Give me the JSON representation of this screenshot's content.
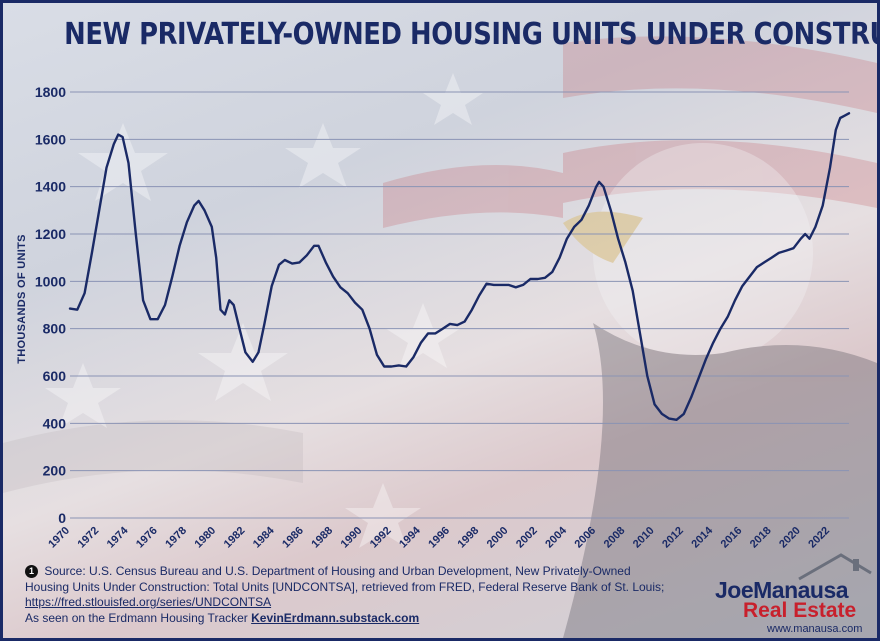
{
  "title": "NEW PRIVATELY-OWNED HOUSING UNITS UNDER CONSTRUCTION",
  "colors": {
    "line": "#1a2a66",
    "accent_red": "#c8202c",
    "grid": "#8a93b4"
  },
  "chart_data": {
    "type": "line",
    "title": "NEW PRIVATELY-OWNED HOUSING UNITS UNDER CONSTRUCTION",
    "xlabel": "",
    "ylabel": "THOUSANDS OF UNITS",
    "xlim": [
      1970,
      2023.3
    ],
    "ylim": [
      0,
      1800
    ],
    "yticks": [
      0,
      200,
      400,
      600,
      800,
      1000,
      1200,
      1400,
      1600,
      1800
    ],
    "xticks": [
      "1970",
      "1972",
      "1974",
      "1976",
      "1978",
      "1980",
      "1982",
      "1984",
      "1986",
      "1988",
      "1990",
      "1992",
      "1994",
      "1996",
      "1998",
      "2000",
      "2002",
      "2004",
      "2006",
      "2008",
      "2010",
      "2012",
      "2014",
      "2016",
      "2018",
      "2020",
      "2022"
    ],
    "grid": "horizontal",
    "legend": "none",
    "series": [
      {
        "name": "",
        "points": [
          [
            1970.0,
            885
          ],
          [
            1970.5,
            880
          ],
          [
            1971.0,
            950
          ],
          [
            1971.5,
            1120
          ],
          [
            1972.0,
            1300
          ],
          [
            1972.5,
            1480
          ],
          [
            1973.0,
            1580
          ],
          [
            1973.3,
            1620
          ],
          [
            1973.6,
            1610
          ],
          [
            1974.0,
            1500
          ],
          [
            1974.5,
            1200
          ],
          [
            1975.0,
            920
          ],
          [
            1975.5,
            840
          ],
          [
            1976.0,
            840
          ],
          [
            1976.5,
            900
          ],
          [
            1977.0,
            1020
          ],
          [
            1977.5,
            1150
          ],
          [
            1978.0,
            1250
          ],
          [
            1978.5,
            1320
          ],
          [
            1978.8,
            1340
          ],
          [
            1979.2,
            1300
          ],
          [
            1979.7,
            1230
          ],
          [
            1980.0,
            1100
          ],
          [
            1980.3,
            880
          ],
          [
            1980.6,
            860
          ],
          [
            1980.9,
            920
          ],
          [
            1981.2,
            900
          ],
          [
            1981.6,
            800
          ],
          [
            1982.0,
            700
          ],
          [
            1982.5,
            660
          ],
          [
            1982.9,
            700
          ],
          [
            1983.3,
            820
          ],
          [
            1983.8,
            980
          ],
          [
            1984.3,
            1070
          ],
          [
            1984.7,
            1090
          ],
          [
            1985.2,
            1075
          ],
          [
            1985.7,
            1080
          ],
          [
            1986.2,
            1110
          ],
          [
            1986.7,
            1150
          ],
          [
            1987.0,
            1150
          ],
          [
            1987.5,
            1080
          ],
          [
            1988.0,
            1020
          ],
          [
            1988.5,
            975
          ],
          [
            1989.0,
            950
          ],
          [
            1989.5,
            910
          ],
          [
            1990.0,
            880
          ],
          [
            1990.5,
            800
          ],
          [
            1991.0,
            690
          ],
          [
            1991.5,
            640
          ],
          [
            1992.0,
            640
          ],
          [
            1992.5,
            645
          ],
          [
            1993.0,
            640
          ],
          [
            1993.5,
            680
          ],
          [
            1994.0,
            740
          ],
          [
            1994.5,
            780
          ],
          [
            1995.0,
            780
          ],
          [
            1995.5,
            800
          ],
          [
            1996.0,
            820
          ],
          [
            1996.5,
            815
          ],
          [
            1997.0,
            830
          ],
          [
            1997.5,
            880
          ],
          [
            1998.0,
            940
          ],
          [
            1998.5,
            990
          ],
          [
            1999.0,
            985
          ],
          [
            1999.5,
            985
          ],
          [
            2000.0,
            985
          ],
          [
            2000.5,
            975
          ],
          [
            2001.0,
            985
          ],
          [
            2001.5,
            1010
          ],
          [
            2002.0,
            1010
          ],
          [
            2002.5,
            1015
          ],
          [
            2003.0,
            1040
          ],
          [
            2003.5,
            1100
          ],
          [
            2004.0,
            1180
          ],
          [
            2004.5,
            1230
          ],
          [
            2005.0,
            1260
          ],
          [
            2005.5,
            1320
          ],
          [
            2006.0,
            1400
          ],
          [
            2006.2,
            1420
          ],
          [
            2006.5,
            1400
          ],
          [
            2007.0,
            1300
          ],
          [
            2007.5,
            1180
          ],
          [
            2008.0,
            1080
          ],
          [
            2008.5,
            960
          ],
          [
            2009.0,
            780
          ],
          [
            2009.5,
            600
          ],
          [
            2010.0,
            480
          ],
          [
            2010.5,
            440
          ],
          [
            2011.0,
            420
          ],
          [
            2011.5,
            415
          ],
          [
            2012.0,
            440
          ],
          [
            2012.5,
            510
          ],
          [
            2013.0,
            590
          ],
          [
            2013.5,
            670
          ],
          [
            2014.0,
            740
          ],
          [
            2014.5,
            800
          ],
          [
            2015.0,
            850
          ],
          [
            2015.5,
            920
          ],
          [
            2016.0,
            980
          ],
          [
            2016.5,
            1020
          ],
          [
            2017.0,
            1060
          ],
          [
            2017.5,
            1080
          ],
          [
            2018.0,
            1100
          ],
          [
            2018.5,
            1120
          ],
          [
            2019.0,
            1130
          ],
          [
            2019.5,
            1140
          ],
          [
            2020.0,
            1180
          ],
          [
            2020.3,
            1200
          ],
          [
            2020.6,
            1180
          ],
          [
            2021.0,
            1230
          ],
          [
            2021.5,
            1320
          ],
          [
            2022.0,
            1480
          ],
          [
            2022.4,
            1640
          ],
          [
            2022.7,
            1690
          ],
          [
            2023.0,
            1700
          ],
          [
            2023.3,
            1710
          ]
        ]
      }
    ]
  },
  "source": {
    "number": "1",
    "line1": " Source: U.S. Census Bureau and U.S. Department of Housing and Urban Development, New Privately-Owned Housing Units Under Construction: Total Units [UNDCONTSA], retrieved from FRED, Federal Reserve Bank of St. Louis; ",
    "link": "https://fred.stlouisfed.org/series/UNDCONTSA",
    "line2_prefix": "As seen on the Erdmann Housing Tracker ",
    "line2_link": "KevinErdmann.substack.com"
  },
  "logo": {
    "line1": "JoeManausa",
    "line2": "Real Estate",
    "url": "www.manausa.com"
  },
  "bg_icons": [
    "star-icon",
    "eagle-icon",
    "flag-stripes"
  ]
}
